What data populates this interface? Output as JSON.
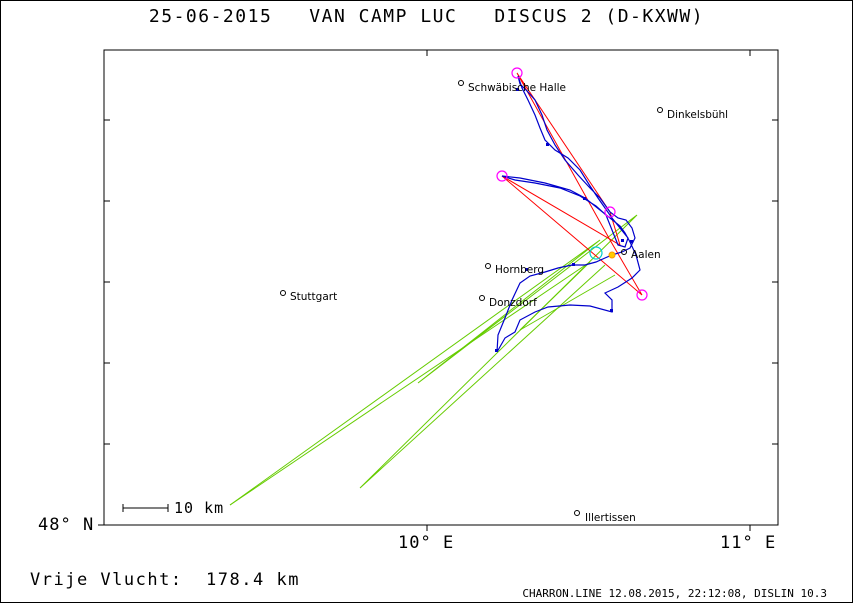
{
  "header": {
    "title": "25-06-2015   VAN CAMP LUC   DISCUS 2 (D-KXWW)"
  },
  "axes": {
    "lat_label": "48° N",
    "lon_labels": [
      "10° E",
      "11° E"
    ],
    "scale_label": "10 km"
  },
  "towns": [
    {
      "name": "Schwäbische Halle",
      "lon": 10.11,
      "lat": 49.12
    },
    {
      "name": "Dinkelsbühl",
      "lon": 10.71,
      "lat": 49.07
    },
    {
      "name": "Aalen",
      "lon": 10.6,
      "lat": 48.84
    },
    {
      "name": "Hornberg",
      "lon": 10.19,
      "lat": 48.79
    },
    {
      "name": "Stuttgart",
      "lon": 9.57,
      "lat": 48.78
    },
    {
      "name": "Donzdorf",
      "lon": 10.17,
      "lat": 48.71
    },
    {
      "name": "Illertissen",
      "lon": 10.46,
      "lat": 48.02
    }
  ],
  "summary": {
    "label": "Vrije Vlucht:",
    "distance": "178.4 km"
  },
  "footer": {
    "text": "CHARRON.LINE 12.08.2015, 22:12:08, DISLIN 10.3"
  },
  "colors": {
    "track": "#0000cc",
    "task": "#ff0000",
    "turnpoint": "#ff00ff",
    "start": "#00cccc",
    "glide": "#66cc00",
    "town": "#000000"
  }
}
